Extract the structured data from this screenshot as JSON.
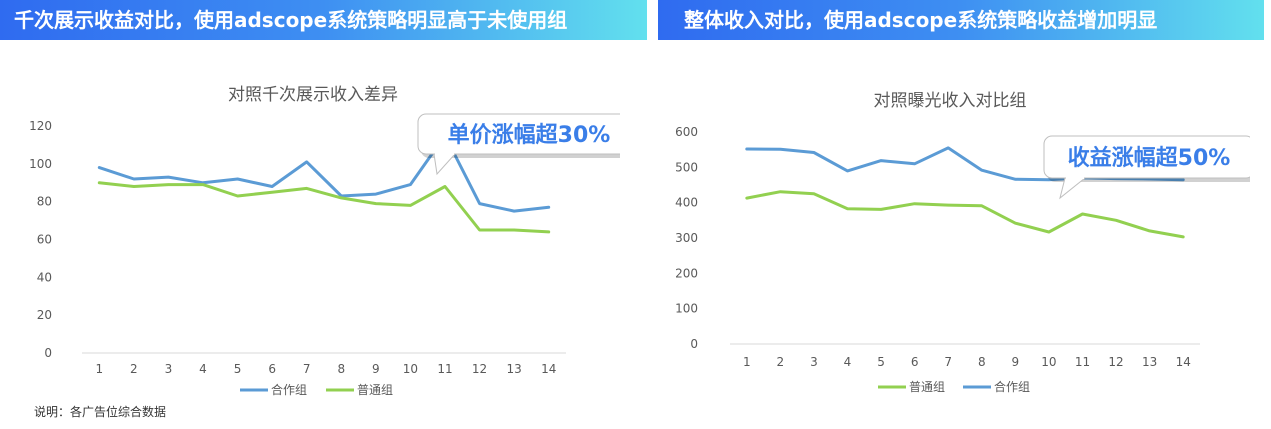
{
  "banners": {
    "left": "千次展示收益对比，使用adscope系统策略明显高于未使用组",
    "right": "整体收入对比，使用adscope系统策略收益增加明显"
  },
  "note": "说明：各广告位综合数据",
  "colors": {
    "cooperation": "#5b9bd5",
    "normal": "#92d050",
    "callout_text": "#3a7ee8"
  },
  "chart_data": [
    {
      "type": "line",
      "title": "对照千次展示收入差异",
      "categories": [
        "1",
        "2",
        "3",
        "4",
        "5",
        "6",
        "7",
        "8",
        "9",
        "10",
        "11",
        "12",
        "13",
        "14"
      ],
      "ylim": [
        0,
        120
      ],
      "yticks": [
        0,
        20,
        40,
        60,
        80,
        100,
        120
      ],
      "grid": false,
      "legend": "bottom",
      "legend_order": [
        "合作组",
        "普通组"
      ],
      "series": [
        {
          "name": "合作组",
          "key": "cooperation",
          "values": [
            98,
            92,
            93,
            90,
            92,
            88,
            101,
            83,
            84,
            89,
            115,
            79,
            75,
            77
          ]
        },
        {
          "name": "普通组",
          "key": "normal",
          "values": [
            90,
            88,
            89,
            89,
            83,
            85,
            87,
            82,
            79,
            78,
            88,
            65,
            65,
            64
          ]
        }
      ],
      "callout": {
        "text": "单价涨幅超30%",
        "pointer_category": "10"
      }
    },
    {
      "type": "line",
      "title": "对照曝光收入对比组",
      "categories": [
        "1",
        "2",
        "3",
        "4",
        "5",
        "6",
        "7",
        "8",
        "9",
        "10",
        "11",
        "12",
        "13",
        "14"
      ],
      "ylim": [
        0,
        600
      ],
      "yticks": [
        0,
        100,
        200,
        300,
        400,
        500,
        600
      ],
      "grid": false,
      "legend": "bottom",
      "legend_order": [
        "普通组",
        "合作组"
      ],
      "series": [
        {
          "name": "合作组",
          "key": "cooperation",
          "values": [
            552,
            551,
            542,
            490,
            519,
            510,
            555,
            492,
            466,
            465,
            470,
            468,
            467,
            465
          ]
        },
        {
          "name": "普通组",
          "key": "normal",
          "values": [
            413,
            431,
            425,
            383,
            381,
            397,
            393,
            391,
            342,
            317,
            368,
            350,
            320,
            303
          ]
        }
      ],
      "callout": {
        "text": "收益涨幅超50%",
        "pointer_category": "9"
      }
    }
  ]
}
